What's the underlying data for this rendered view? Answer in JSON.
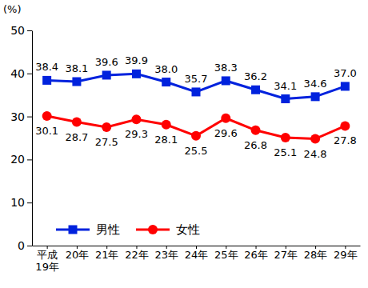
{
  "chart_data": {
    "type": "line",
    "y_label": "(%)",
    "categories": [
      "平成\n19年",
      "20年",
      "21年",
      "22年",
      "23年",
      "24年",
      "25年",
      "26年",
      "27年",
      "28年",
      "29年"
    ],
    "series": [
      {
        "name": "男性",
        "color": "#0022dd",
        "marker": "square",
        "line_style": "solid",
        "values": [
          38.4,
          38.1,
          39.6,
          39.9,
          38.0,
          35.7,
          38.3,
          36.2,
          34.1,
          34.6,
          37.0
        ],
        "value_labels": [
          "38.4",
          "38.1",
          "39.6",
          "39.9",
          "38.0",
          "35.7",
          "38.3",
          "36.2",
          "34.1",
          "34.6",
          "37.0"
        ]
      },
      {
        "name": "女性",
        "color": "#ff0000",
        "marker": "circle",
        "line_style": "solid",
        "values": [
          30.1,
          28.7,
          27.5,
          29.3,
          28.1,
          25.5,
          29.6,
          26.8,
          25.1,
          24.8,
          27.8
        ],
        "value_labels": [
          "30.1",
          "28.7",
          "27.5",
          "29.3",
          "28.1",
          "25.5",
          "29.6",
          "26.8",
          "25.1",
          "24.8",
          "27.8"
        ]
      }
    ],
    "ylim": [
      0,
      50
    ],
    "yticks": [
      0,
      10,
      20,
      30,
      40,
      50
    ],
    "grid": false,
    "legend": "lower left",
    "data_labels": true
  }
}
